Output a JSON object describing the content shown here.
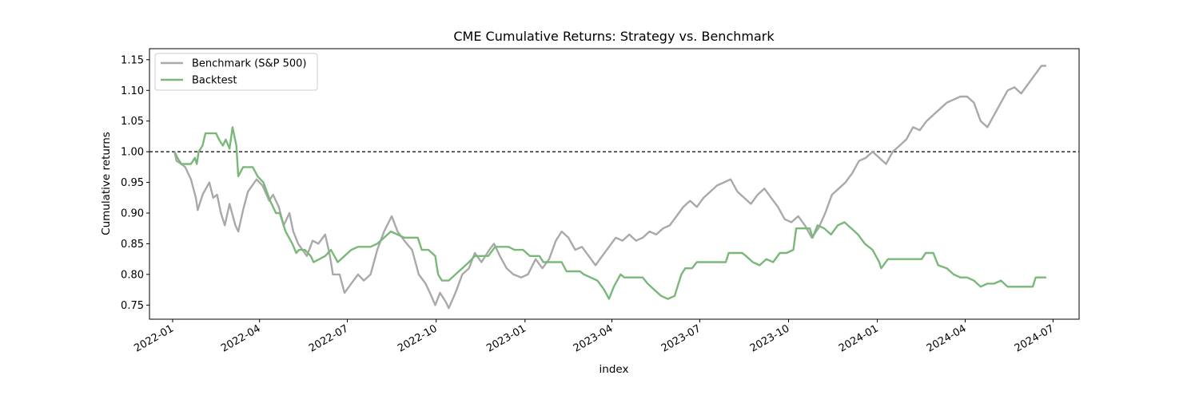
{
  "chart_data": {
    "type": "line",
    "title": "CME Cumulative Returns: Strategy vs. Benchmark",
    "xlabel": "index",
    "ylabel": "Cumulative returns",
    "x_type": "date",
    "xlim": [
      "2021-12-08",
      "2024-07-28"
    ],
    "ylim": [
      0.727,
      1.168
    ],
    "x_ticks": [
      "2022-01",
      "2022-04",
      "2022-07",
      "2022-10",
      "2023-01",
      "2023-04",
      "2023-07",
      "2023-10",
      "2024-01",
      "2024-04",
      "2024-07"
    ],
    "y_ticks": [
      "0.75",
      "0.80",
      "0.85",
      "0.90",
      "0.95",
      "1.00",
      "1.05",
      "1.10",
      "1.15"
    ],
    "reference_line": {
      "y": 1.0,
      "style": "dashed",
      "color": "#000000"
    },
    "legend": {
      "position": "top-left"
    },
    "grid": false,
    "series": [
      {
        "name": "Benchmark (S&P 500)",
        "color": "#a9a9a9",
        "points": [
          [
            "2022-01-03",
            1.0
          ],
          [
            "2022-01-05",
            0.985
          ],
          [
            "2022-01-10",
            0.98
          ],
          [
            "2022-01-14",
            0.975
          ],
          [
            "2022-01-20",
            0.955
          ],
          [
            "2022-01-25",
            0.925
          ],
          [
            "2022-01-27",
            0.905
          ],
          [
            "2022-02-01",
            0.93
          ],
          [
            "2022-02-08",
            0.95
          ],
          [
            "2022-02-12",
            0.925
          ],
          [
            "2022-02-16",
            0.93
          ],
          [
            "2022-02-20",
            0.9
          ],
          [
            "2022-02-24",
            0.88
          ],
          [
            "2022-03-01",
            0.915
          ],
          [
            "2022-03-07",
            0.88
          ],
          [
            "2022-03-10",
            0.87
          ],
          [
            "2022-03-15",
            0.905
          ],
          [
            "2022-03-20",
            0.935
          ],
          [
            "2022-03-29",
            0.955
          ],
          [
            "2022-04-04",
            0.945
          ],
          [
            "2022-04-11",
            0.92
          ],
          [
            "2022-04-15",
            0.93
          ],
          [
            "2022-04-21",
            0.91
          ],
          [
            "2022-04-26",
            0.88
          ],
          [
            "2022-05-02",
            0.9
          ],
          [
            "2022-05-06",
            0.87
          ],
          [
            "2022-05-11",
            0.85
          ],
          [
            "2022-05-20",
            0.83
          ],
          [
            "2022-05-26",
            0.855
          ],
          [
            "2022-06-01",
            0.85
          ],
          [
            "2022-06-08",
            0.865
          ],
          [
            "2022-06-13",
            0.83
          ],
          [
            "2022-06-16",
            0.8
          ],
          [
            "2022-06-23",
            0.8
          ],
          [
            "2022-06-28",
            0.77
          ],
          [
            "2022-07-05",
            0.785
          ],
          [
            "2022-07-12",
            0.8
          ],
          [
            "2022-07-18",
            0.79
          ],
          [
            "2022-07-25",
            0.8
          ],
          [
            "2022-08-01",
            0.84
          ],
          [
            "2022-08-08",
            0.87
          ],
          [
            "2022-08-16",
            0.895
          ],
          [
            "2022-08-22",
            0.87
          ],
          [
            "2022-08-29",
            0.855
          ],
          [
            "2022-09-06",
            0.84
          ],
          [
            "2022-09-13",
            0.8
          ],
          [
            "2022-09-20",
            0.785
          ],
          [
            "2022-09-26",
            0.765
          ],
          [
            "2022-09-30",
            0.75
          ],
          [
            "2022-10-05",
            0.77
          ],
          [
            "2022-10-11",
            0.755
          ],
          [
            "2022-10-14",
            0.745
          ],
          [
            "2022-10-21",
            0.77
          ],
          [
            "2022-10-28",
            0.8
          ],
          [
            "2022-11-04",
            0.81
          ],
          [
            "2022-11-10",
            0.835
          ],
          [
            "2022-11-17",
            0.82
          ],
          [
            "2022-11-25",
            0.84
          ],
          [
            "2022-11-30",
            0.85
          ],
          [
            "2022-12-06",
            0.83
          ],
          [
            "2022-12-13",
            0.81
          ],
          [
            "2022-12-20",
            0.8
          ],
          [
            "2022-12-28",
            0.795
          ],
          [
            "2023-01-04",
            0.8
          ],
          [
            "2023-01-12",
            0.825
          ],
          [
            "2023-01-19",
            0.81
          ],
          [
            "2023-01-26",
            0.825
          ],
          [
            "2023-02-02",
            0.855
          ],
          [
            "2023-02-08",
            0.87
          ],
          [
            "2023-02-15",
            0.86
          ],
          [
            "2023-02-22",
            0.84
          ],
          [
            "2023-03-01",
            0.845
          ],
          [
            "2023-03-08",
            0.83
          ],
          [
            "2023-03-15",
            0.815
          ],
          [
            "2023-03-22",
            0.83
          ],
          [
            "2023-03-29",
            0.845
          ],
          [
            "2023-04-05",
            0.86
          ],
          [
            "2023-04-12",
            0.855
          ],
          [
            "2023-04-19",
            0.865
          ],
          [
            "2023-04-26",
            0.855
          ],
          [
            "2023-05-03",
            0.86
          ],
          [
            "2023-05-10",
            0.87
          ],
          [
            "2023-05-17",
            0.865
          ],
          [
            "2023-05-24",
            0.875
          ],
          [
            "2023-05-31",
            0.88
          ],
          [
            "2023-06-07",
            0.895
          ],
          [
            "2023-06-14",
            0.91
          ],
          [
            "2023-06-21",
            0.92
          ],
          [
            "2023-06-28",
            0.91
          ],
          [
            "2023-07-05",
            0.925
          ],
          [
            "2023-07-12",
            0.935
          ],
          [
            "2023-07-19",
            0.945
          ],
          [
            "2023-07-26",
            0.95
          ],
          [
            "2023-08-02",
            0.955
          ],
          [
            "2023-08-09",
            0.935
          ],
          [
            "2023-08-16",
            0.925
          ],
          [
            "2023-08-23",
            0.915
          ],
          [
            "2023-08-30",
            0.93
          ],
          [
            "2023-09-06",
            0.94
          ],
          [
            "2023-09-13",
            0.925
          ],
          [
            "2023-09-20",
            0.91
          ],
          [
            "2023-09-27",
            0.89
          ],
          [
            "2023-10-04",
            0.885
          ],
          [
            "2023-10-11",
            0.895
          ],
          [
            "2023-10-18",
            0.88
          ],
          [
            "2023-10-25",
            0.86
          ],
          [
            "2023-11-01",
            0.875
          ],
          [
            "2023-11-08",
            0.9
          ],
          [
            "2023-11-15",
            0.93
          ],
          [
            "2023-11-22",
            0.94
          ],
          [
            "2023-11-29",
            0.95
          ],
          [
            "2023-12-06",
            0.965
          ],
          [
            "2023-12-13",
            0.985
          ],
          [
            "2023-12-20",
            0.99
          ],
          [
            "2023-12-27",
            1.0
          ],
          [
            "2024-01-03",
            0.99
          ],
          [
            "2024-01-10",
            0.98
          ],
          [
            "2024-01-17",
            1.0
          ],
          [
            "2024-01-24",
            1.01
          ],
          [
            "2024-01-31",
            1.02
          ],
          [
            "2024-02-07",
            1.04
          ],
          [
            "2024-02-14",
            1.035
          ],
          [
            "2024-02-21",
            1.05
          ],
          [
            "2024-02-28",
            1.06
          ],
          [
            "2024-03-06",
            1.07
          ],
          [
            "2024-03-13",
            1.08
          ],
          [
            "2024-03-20",
            1.085
          ],
          [
            "2024-03-27",
            1.09
          ],
          [
            "2024-04-03",
            1.09
          ],
          [
            "2024-04-10",
            1.08
          ],
          [
            "2024-04-17",
            1.05
          ],
          [
            "2024-04-24",
            1.04
          ],
          [
            "2024-05-01",
            1.06
          ],
          [
            "2024-05-08",
            1.08
          ],
          [
            "2024-05-15",
            1.1
          ],
          [
            "2024-05-22",
            1.105
          ],
          [
            "2024-05-29",
            1.095
          ],
          [
            "2024-06-05",
            1.11
          ],
          [
            "2024-06-12",
            1.125
          ],
          [
            "2024-06-19",
            1.14
          ],
          [
            "2024-06-24",
            1.14
          ]
        ]
      },
      {
        "name": "Backtest",
        "color": "#7ab87a",
        "points": [
          [
            "2022-01-03",
            1.0
          ],
          [
            "2022-01-06",
            0.99
          ],
          [
            "2022-01-10",
            0.98
          ],
          [
            "2022-01-20",
            0.98
          ],
          [
            "2022-01-24",
            0.99
          ],
          [
            "2022-01-26",
            0.98
          ],
          [
            "2022-01-28",
            1.0
          ],
          [
            "2022-02-01",
            1.01
          ],
          [
            "2022-02-04",
            1.03
          ],
          [
            "2022-02-15",
            1.03
          ],
          [
            "2022-02-18",
            1.02
          ],
          [
            "2022-02-22",
            1.01
          ],
          [
            "2022-02-25",
            1.02
          ],
          [
            "2022-03-01",
            1.005
          ],
          [
            "2022-03-04",
            1.04
          ],
          [
            "2022-03-08",
            1.01
          ],
          [
            "2022-03-10",
            0.96
          ],
          [
            "2022-03-15",
            0.975
          ],
          [
            "2022-03-25",
            0.975
          ],
          [
            "2022-03-30",
            0.96
          ],
          [
            "2022-04-05",
            0.95
          ],
          [
            "2022-04-12",
            0.92
          ],
          [
            "2022-04-18",
            0.9
          ],
          [
            "2022-04-22",
            0.9
          ],
          [
            "2022-04-28",
            0.87
          ],
          [
            "2022-05-05",
            0.85
          ],
          [
            "2022-05-09",
            0.835
          ],
          [
            "2022-05-12",
            0.84
          ],
          [
            "2022-05-18",
            0.84
          ],
          [
            "2022-05-24",
            0.83
          ],
          [
            "2022-05-27",
            0.82
          ],
          [
            "2022-06-02",
            0.825
          ],
          [
            "2022-06-08",
            0.83
          ],
          [
            "2022-06-14",
            0.84
          ],
          [
            "2022-06-21",
            0.82
          ],
          [
            "2022-06-28",
            0.83
          ],
          [
            "2022-07-05",
            0.84
          ],
          [
            "2022-07-12",
            0.845
          ],
          [
            "2022-07-25",
            0.845
          ],
          [
            "2022-08-01",
            0.85
          ],
          [
            "2022-08-08",
            0.86
          ],
          [
            "2022-08-15",
            0.87
          ],
          [
            "2022-08-22",
            0.865
          ],
          [
            "2022-08-29",
            0.86
          ],
          [
            "2022-09-12",
            0.86
          ],
          [
            "2022-09-16",
            0.84
          ],
          [
            "2022-09-23",
            0.84
          ],
          [
            "2022-09-30",
            0.83
          ],
          [
            "2022-10-03",
            0.8
          ],
          [
            "2022-10-07",
            0.79
          ],
          [
            "2022-10-14",
            0.79
          ],
          [
            "2022-10-21",
            0.8
          ],
          [
            "2022-10-28",
            0.81
          ],
          [
            "2022-11-04",
            0.82
          ],
          [
            "2022-11-10",
            0.83
          ],
          [
            "2022-11-24",
            0.83
          ],
          [
            "2022-12-01",
            0.845
          ],
          [
            "2022-12-15",
            0.845
          ],
          [
            "2022-12-21",
            0.84
          ],
          [
            "2022-12-30",
            0.84
          ],
          [
            "2023-01-06",
            0.83
          ],
          [
            "2023-01-16",
            0.83
          ],
          [
            "2023-01-20",
            0.82
          ],
          [
            "2023-02-08",
            0.82
          ],
          [
            "2023-02-13",
            0.805
          ],
          [
            "2023-02-27",
            0.805
          ],
          [
            "2023-03-03",
            0.8
          ],
          [
            "2023-03-10",
            0.795
          ],
          [
            "2023-03-17",
            0.79
          ],
          [
            "2023-03-24",
            0.775
          ],
          [
            "2023-03-29",
            0.76
          ],
          [
            "2023-04-03",
            0.78
          ],
          [
            "2023-04-10",
            0.8
          ],
          [
            "2023-04-14",
            0.795
          ],
          [
            "2023-05-03",
            0.795
          ],
          [
            "2023-05-08",
            0.785
          ],
          [
            "2023-05-15",
            0.775
          ],
          [
            "2023-05-22",
            0.765
          ],
          [
            "2023-05-29",
            0.76
          ],
          [
            "2023-06-05",
            0.765
          ],
          [
            "2023-06-12",
            0.8
          ],
          [
            "2023-06-16",
            0.81
          ],
          [
            "2023-06-23",
            0.81
          ],
          [
            "2023-06-28",
            0.82
          ],
          [
            "2023-07-28",
            0.82
          ],
          [
            "2023-07-31",
            0.835
          ],
          [
            "2023-08-14",
            0.835
          ],
          [
            "2023-08-18",
            0.83
          ],
          [
            "2023-08-25",
            0.82
          ],
          [
            "2023-09-01",
            0.815
          ],
          [
            "2023-09-08",
            0.825
          ],
          [
            "2023-09-15",
            0.82
          ],
          [
            "2023-09-22",
            0.835
          ],
          [
            "2023-09-29",
            0.835
          ],
          [
            "2023-10-06",
            0.84
          ],
          [
            "2023-10-09",
            0.875
          ],
          [
            "2023-10-23",
            0.875
          ],
          [
            "2023-10-26",
            0.86
          ],
          [
            "2023-10-31",
            0.88
          ],
          [
            "2023-11-07",
            0.875
          ],
          [
            "2023-11-14",
            0.865
          ],
          [
            "2023-11-21",
            0.88
          ],
          [
            "2023-11-28",
            0.885
          ],
          [
            "2023-12-05",
            0.875
          ],
          [
            "2023-12-12",
            0.865
          ],
          [
            "2023-12-19",
            0.85
          ],
          [
            "2023-12-27",
            0.84
          ],
          [
            "2024-01-03",
            0.82
          ],
          [
            "2024-01-05",
            0.81
          ],
          [
            "2024-01-12",
            0.825
          ],
          [
            "2024-02-16",
            0.825
          ],
          [
            "2024-02-20",
            0.835
          ],
          [
            "2024-02-28",
            0.835
          ],
          [
            "2024-03-04",
            0.815
          ],
          [
            "2024-03-13",
            0.81
          ],
          [
            "2024-03-20",
            0.8
          ],
          [
            "2024-03-27",
            0.795
          ],
          [
            "2024-04-03",
            0.795
          ],
          [
            "2024-04-10",
            0.79
          ],
          [
            "2024-04-17",
            0.78
          ],
          [
            "2024-04-24",
            0.785
          ],
          [
            "2024-05-01",
            0.785
          ],
          [
            "2024-05-08",
            0.79
          ],
          [
            "2024-05-15",
            0.78
          ],
          [
            "2024-05-22",
            0.78
          ],
          [
            "2024-05-29",
            0.78
          ],
          [
            "2024-06-10",
            0.78
          ],
          [
            "2024-06-13",
            0.795
          ],
          [
            "2024-06-24",
            0.795
          ]
        ]
      }
    ]
  }
}
